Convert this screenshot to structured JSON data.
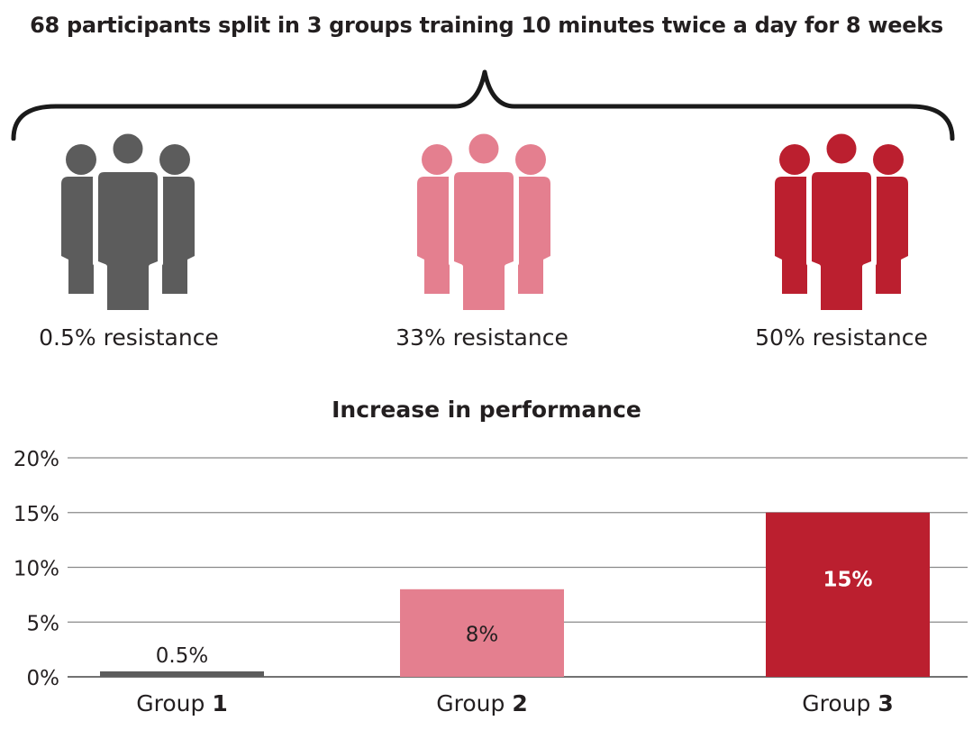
{
  "headline": "68 participants split in 3 groups training 10 minutes twice a day for 8 weeks",
  "groups": [
    {
      "resistance": "0.5% resistance",
      "color": "#5c5c5c"
    },
    {
      "resistance": "33% resistance",
      "color": "#e47f8f"
    },
    {
      "resistance": "50% resistance",
      "color": "#bb1f2f"
    }
  ],
  "icons": [
    "people-group-icon",
    "people-group-icon",
    "people-group-icon"
  ],
  "chart_data": {
    "type": "bar",
    "title": "Increase in performance",
    "categories": [
      "Group 1",
      "Group 2",
      "Group 3"
    ],
    "category_prefix": "Group",
    "category_numbers": [
      "1",
      "2",
      "3"
    ],
    "values": [
      0.5,
      8,
      15
    ],
    "value_labels": [
      "0.5%",
      "8%",
      "15%"
    ],
    "colors": [
      "#5c5c5c",
      "#e47f8f",
      "#bb1f2f"
    ],
    "yticks": [
      "0%",
      "5%",
      "10%",
      "15%",
      "20%"
    ],
    "ylim": [
      0,
      20
    ],
    "xlabel": "",
    "ylabel": "",
    "grid": true
  }
}
